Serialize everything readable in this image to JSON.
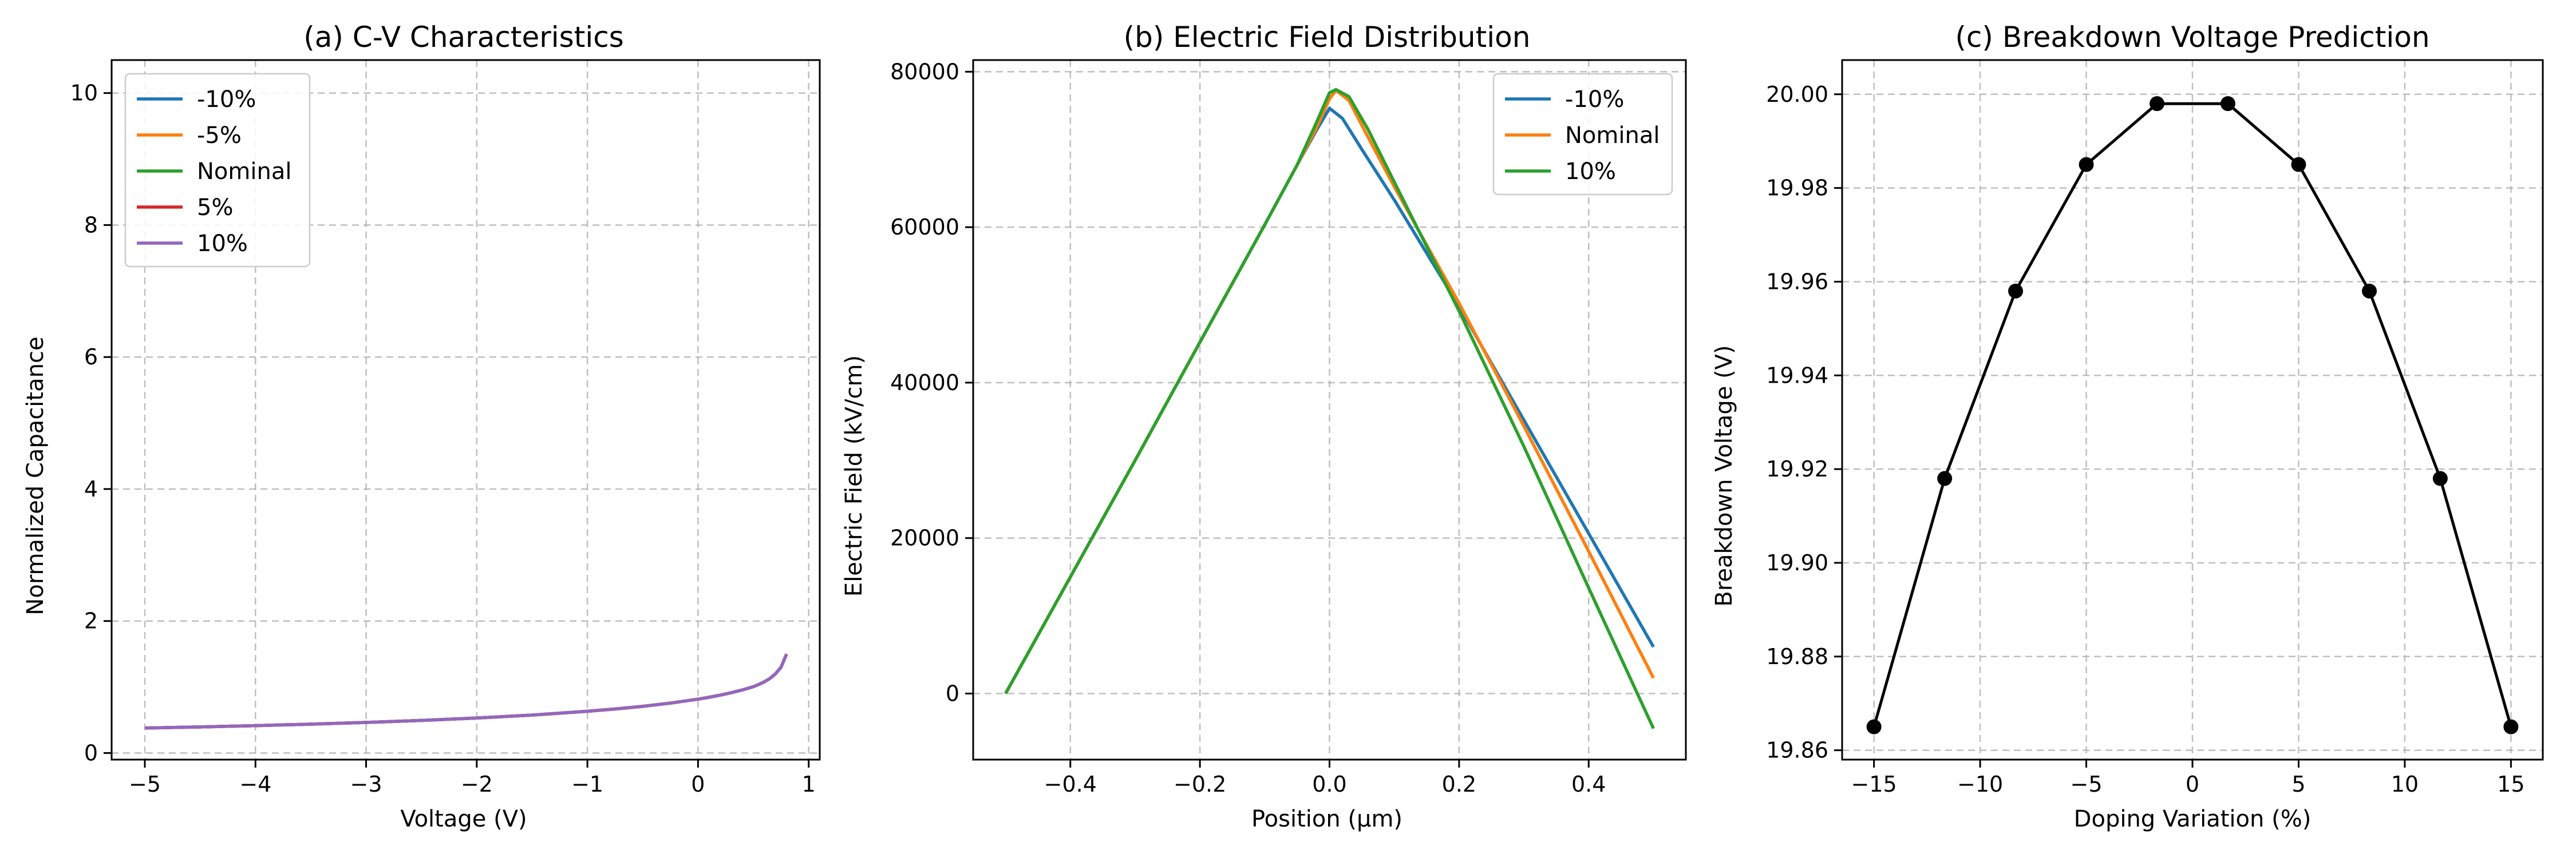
{
  "chart_data": [
    {
      "type": "line",
      "title": "(a) C-V Characteristics",
      "xlabel": "Voltage (V)",
      "ylabel": "Normalized Capacitance",
      "xlim": [
        -5.3,
        1.1
      ],
      "ylim": [
        -0.1,
        10.5
      ],
      "xticks": [
        -5,
        -4,
        -3,
        -2,
        -1,
        0,
        1
      ],
      "yticks": [
        0,
        2,
        4,
        6,
        8,
        10
      ],
      "grid": true,
      "legend": "top-left",
      "x": [
        -5,
        -4.5,
        -4,
        -3.5,
        -3,
        -2.5,
        -2,
        -1.5,
        -1,
        -0.75,
        -0.5,
        -0.25,
        0,
        0.1,
        0.2,
        0.3,
        0.4,
        0.5,
        0.55,
        0.6,
        0.65,
        0.7,
        0.75,
        0.8
      ],
      "series": [
        {
          "name": "-10%",
          "color": "#1f77b4",
          "values": [
            0.378,
            0.395,
            0.415,
            0.437,
            0.463,
            0.494,
            0.53,
            0.575,
            0.632,
            0.667,
            0.707,
            0.756,
            0.816,
            0.845,
            0.877,
            0.913,
            0.956,
            1.005,
            1.04,
            1.08,
            1.13,
            1.2,
            1.3,
            1.5
          ]
        },
        {
          "name": "-5%",
          "color": "#ff7f0e",
          "values": [
            0.378,
            0.395,
            0.415,
            0.437,
            0.463,
            0.494,
            0.53,
            0.575,
            0.632,
            0.667,
            0.707,
            0.756,
            0.816,
            0.845,
            0.877,
            0.913,
            0.956,
            1.005,
            1.04,
            1.08,
            1.13,
            1.2,
            1.3,
            1.5
          ]
        },
        {
          "name": "Nominal",
          "color": "#2ca02c",
          "values": [
            0.378,
            0.395,
            0.415,
            0.437,
            0.463,
            0.494,
            0.53,
            0.575,
            0.632,
            0.667,
            0.707,
            0.756,
            0.816,
            0.845,
            0.877,
            0.913,
            0.956,
            1.005,
            1.04,
            1.08,
            1.13,
            1.2,
            1.3,
            1.5
          ]
        },
        {
          "name": "5%",
          "color": "#d62728",
          "values": [
            0.378,
            0.395,
            0.415,
            0.437,
            0.463,
            0.494,
            0.53,
            0.575,
            0.632,
            0.667,
            0.707,
            0.756,
            0.816,
            0.845,
            0.877,
            0.913,
            0.956,
            1.005,
            1.04,
            1.08,
            1.13,
            1.2,
            1.3,
            1.5
          ]
        },
        {
          "name": "10%",
          "color": "#9467bd",
          "values": [
            0.378,
            0.395,
            0.415,
            0.437,
            0.463,
            0.494,
            0.53,
            0.575,
            0.632,
            0.667,
            0.707,
            0.756,
            0.816,
            0.845,
            0.877,
            0.913,
            0.956,
            1.005,
            1.04,
            1.08,
            1.13,
            1.2,
            1.3,
            1.5
          ]
        }
      ]
    },
    {
      "type": "line",
      "title": "(b) Electric Field Distribution",
      "xlabel": "Position (μm)",
      "ylabel": "Electric Field (kV/cm)",
      "xlim": [
        -0.55,
        0.55
      ],
      "ylim": [
        -8500,
        81500
      ],
      "xticks": [
        -0.4,
        -0.2,
        0.0,
        0.2,
        0.4
      ],
      "yticks": [
        0,
        20000,
        40000,
        60000,
        80000
      ],
      "grid": true,
      "legend": "top-right",
      "series": [
        {
          "name": "-10%",
          "color": "#1f77b4",
          "x": [
            -0.5,
            -0.4,
            -0.3,
            -0.2,
            -0.1,
            -0.05,
            -0.02,
            0.0,
            0.02,
            0.05,
            0.1,
            0.2,
            0.3,
            0.4,
            0.5
          ],
          "values": [
            0,
            15000,
            30000,
            45200,
            60300,
            68000,
            72500,
            75300,
            74000,
            70000,
            63500,
            49800,
            35200,
            20600,
            6000
          ]
        },
        {
          "name": "Nominal",
          "color": "#ff7f0e",
          "x": [
            -0.5,
            -0.4,
            -0.3,
            -0.2,
            -0.1,
            -0.05,
            -0.02,
            0.0,
            0.01,
            0.03,
            0.06,
            0.1,
            0.2,
            0.3,
            0.4,
            0.5
          ],
          "values": [
            0,
            15000,
            30000,
            45200,
            60300,
            68000,
            72800,
            76500,
            77600,
            76300,
            71500,
            65200,
            50200,
            34400,
            18300,
            2000
          ]
        },
        {
          "name": "10%",
          "color": "#2ca02c",
          "x": [
            -0.5,
            -0.4,
            -0.3,
            -0.2,
            -0.1,
            -0.05,
            -0.02,
            0.0,
            0.01,
            0.03,
            0.06,
            0.1,
            0.2,
            0.3,
            0.4,
            0.5
          ],
          "values": [
            0,
            15000,
            30000,
            45200,
            60300,
            68000,
            73500,
            77300,
            77700,
            76800,
            72500,
            65800,
            49200,
            31800,
            13600,
            -4500
          ]
        }
      ]
    },
    {
      "type": "line",
      "title": "(c) Breakdown Voltage Prediction",
      "xlabel": "Doping Variation (%)",
      "ylabel": "Breakdown Voltage (V)",
      "xlim": [
        -16.5,
        16.5
      ],
      "ylim": [
        19.858,
        20.0073
      ],
      "xticks": [
        -15,
        -10,
        -5,
        0,
        5,
        10,
        15
      ],
      "yticks": [
        19.86,
        19.88,
        19.9,
        19.92,
        19.94,
        19.96,
        19.98,
        20.0
      ],
      "ytick_labels": [
        "19.86",
        "19.88",
        "19.90",
        "19.92",
        "19.94",
        "19.96",
        "19.98",
        "20.00"
      ],
      "grid": true,
      "series": [
        {
          "color": "#000000",
          "x": [
            -15,
            -11.67,
            -8.33,
            -5,
            -1.67,
            1.67,
            5,
            8.33,
            11.67,
            15
          ],
          "values": [
            19.865,
            19.918,
            19.958,
            19.985,
            19.998,
            19.998,
            19.985,
            19.958,
            19.918,
            19.865
          ],
          "markers": true
        }
      ]
    }
  ]
}
